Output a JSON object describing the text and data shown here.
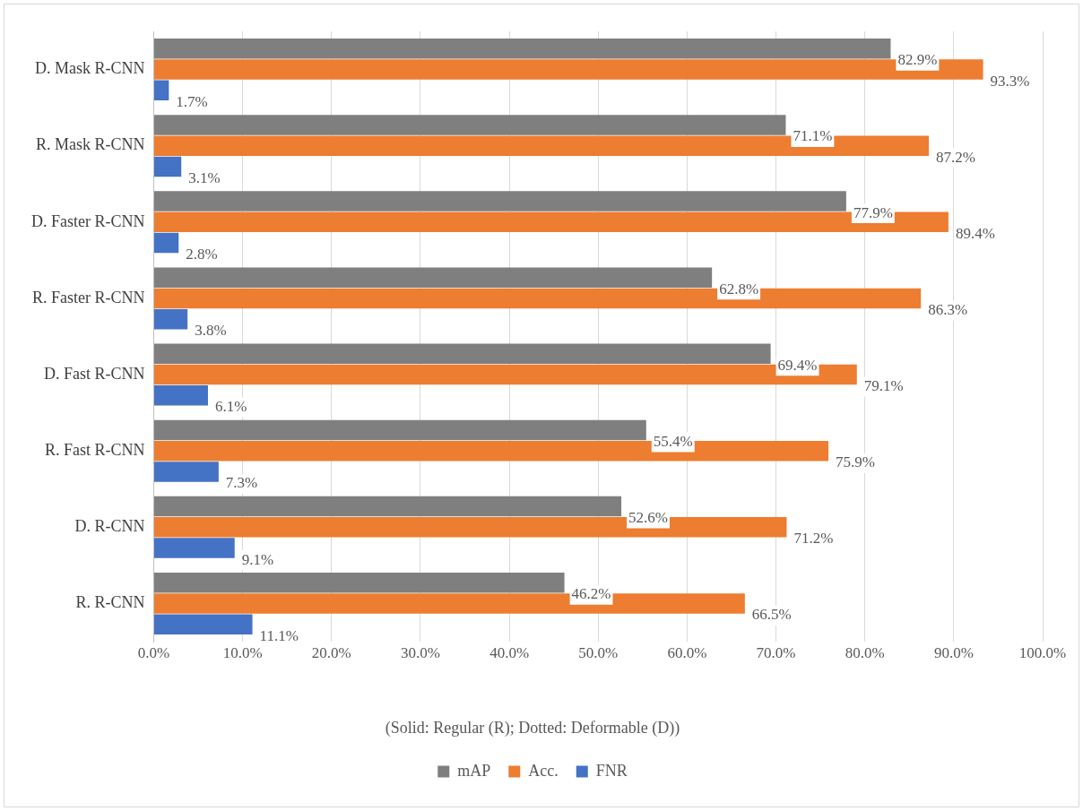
{
  "chart_data": {
    "type": "bar",
    "orientation": "horizontal",
    "categories": [
      "D. Mask R-CNN",
      "R. Mask R-CNN",
      "D. Faster R-CNN",
      "R. Faster R-CNN",
      "D. Fast R-CNN",
      "R. Fast R-CNN",
      "D. R-CNN",
      "R. R-CNN"
    ],
    "series": [
      {
        "name": "mAP",
        "color": "#7f7f7f",
        "values": [
          82.9,
          71.1,
          77.9,
          62.8,
          69.4,
          55.4,
          52.6,
          46.2
        ],
        "value_labels": [
          "82.9%",
          "71.1%",
          "77.9%",
          "62.8%",
          "69.4%",
          "55.4%",
          "52.6%",
          "46.2%"
        ]
      },
      {
        "name": "Acc.",
        "color": "#ed7d31",
        "values": [
          93.3,
          87.2,
          89.4,
          86.3,
          79.1,
          75.9,
          71.2,
          66.5
        ],
        "value_labels": [
          "93.3%",
          "87.2%",
          "89.4%",
          "86.3%",
          "79.1%",
          "75.9%",
          "71.2%",
          "66.5%"
        ]
      },
      {
        "name": "FNR",
        "color": "#4472c4",
        "values": [
          1.7,
          3.1,
          2.8,
          3.8,
          6.1,
          7.3,
          9.1,
          11.1
        ],
        "value_labels": [
          "1.7%",
          "3.1%",
          "2.8%",
          "3.8%",
          "6.1%",
          "7.3%",
          "9.1%",
          "11.1%"
        ]
      }
    ],
    "xlim": [
      0,
      100
    ],
    "xticks": [
      {
        "value": 0,
        "label": "0.0%"
      },
      {
        "value": 10,
        "label": "10.0%"
      },
      {
        "value": 20,
        "label": "20.0%"
      },
      {
        "value": 30,
        "label": "30.0%"
      },
      {
        "value": 40,
        "label": "40.0%"
      },
      {
        "value": 50,
        "label": "50.0%"
      },
      {
        "value": 60,
        "label": "60.0%"
      },
      {
        "value": 70,
        "label": "70.0%"
      },
      {
        "value": 80,
        "label": "80.0%"
      },
      {
        "value": 90,
        "label": "90.0%"
      },
      {
        "value": 100,
        "label": "100.0%"
      }
    ],
    "grid": "x",
    "legend": "bottom",
    "annotations": [
      "(Solid: Regular (R); Dotted: Deformable (D))"
    ]
  }
}
